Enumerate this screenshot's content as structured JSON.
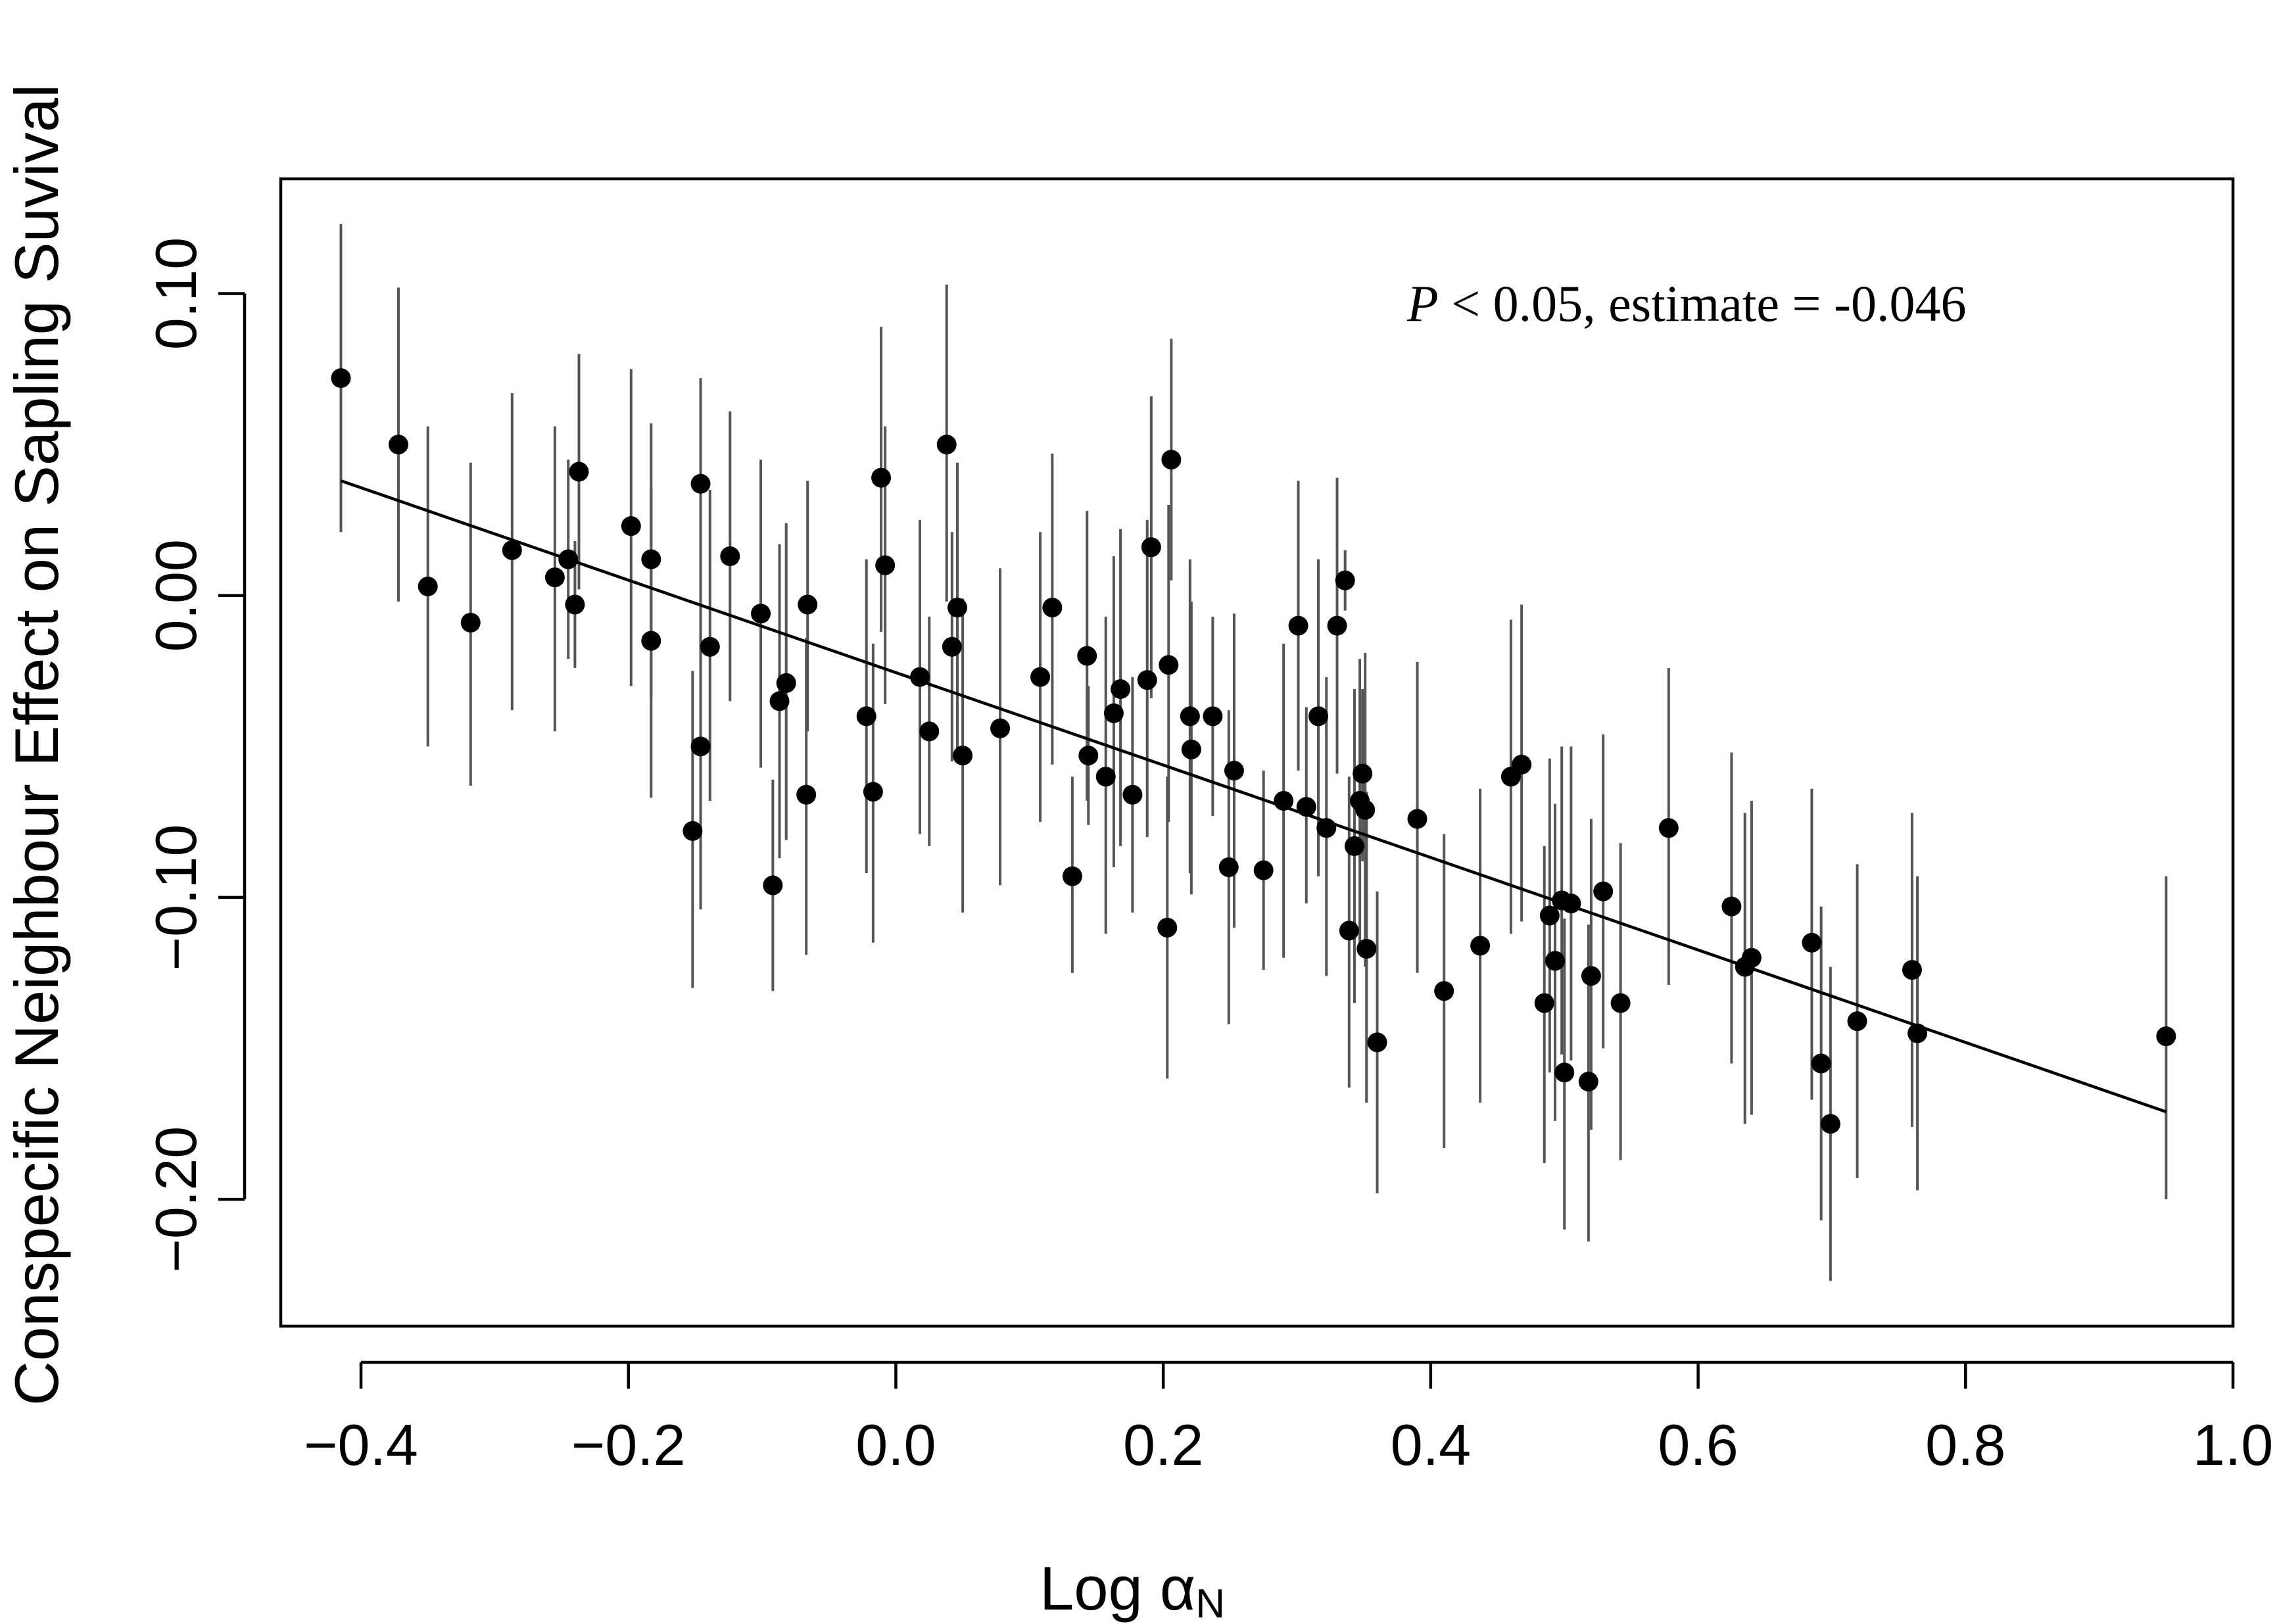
{
  "chart_data": {
    "type": "scatter",
    "xlabel": "Log α",
    "xlabel_subscript": "N",
    "ylabel": "Conspecific Neighbour Effect on Sapling Suvival",
    "xlim": [
      -0.46,
      1.0
    ],
    "ylim": [
      -0.242,
      0.138
    ],
    "x_ticks": [
      -0.4,
      -0.2,
      0.0,
      0.2,
      0.4,
      0.6,
      0.8,
      1.0
    ],
    "x_tick_labels": [
      "−0.4",
      "−0.2",
      "0.0",
      "0.2",
      "0.4",
      "0.6",
      "0.8",
      "1.0"
    ],
    "y_ticks": [
      -0.2,
      -0.1,
      0.0,
      0.1
    ],
    "y_tick_labels": [
      "−0.20",
      "−0.10",
      "0.00",
      "0.10"
    ],
    "grid": false,
    "legend": "none",
    "annotation": {
      "p_symbol": "P",
      "text": " < 0.05, estimate = -0.046",
      "position": "top-right"
    },
    "fit_line": {
      "x": [
        -0.415,
        0.95
      ],
      "y": [
        0.038,
        -0.171
      ]
    },
    "points": [
      {
        "x": -0.415,
        "y": 0.072,
        "lo": 0.021,
        "hi": 0.123
      },
      {
        "x": -0.372,
        "y": 0.05,
        "lo": -0.002,
        "hi": 0.102
      },
      {
        "x": -0.35,
        "y": 0.003,
        "lo": -0.05,
        "hi": 0.056
      },
      {
        "x": -0.318,
        "y": -0.009,
        "lo": -0.063,
        "hi": 0.044
      },
      {
        "x": -0.287,
        "y": 0.015,
        "lo": -0.038,
        "hi": 0.067
      },
      {
        "x": -0.255,
        "y": 0.006,
        "lo": -0.045,
        "hi": 0.056
      },
      {
        "x": -0.245,
        "y": 0.012,
        "lo": -0.021,
        "hi": 0.045
      },
      {
        "x": -0.24,
        "y": -0.003,
        "lo": -0.024,
        "hi": 0.018
      },
      {
        "x": -0.237,
        "y": 0.041,
        "lo": 0.002,
        "hi": 0.08
      },
      {
        "x": -0.198,
        "y": 0.023,
        "lo": -0.03,
        "hi": 0.075
      },
      {
        "x": -0.183,
        "y": 0.012,
        "lo": -0.034,
        "hi": 0.057
      },
      {
        "x": -0.183,
        "y": -0.015,
        "lo": -0.067,
        "hi": 0.036
      },
      {
        "x": -0.152,
        "y": -0.078,
        "lo": -0.13,
        "hi": -0.025
      },
      {
        "x": -0.146,
        "y": 0.037,
        "lo": 0.003,
        "hi": 0.072
      },
      {
        "x": -0.146,
        "y": -0.05,
        "lo": -0.104,
        "hi": 0.004
      },
      {
        "x": -0.139,
        "y": -0.017,
        "lo": -0.068,
        "hi": 0.035
      },
      {
        "x": -0.124,
        "y": 0.013,
        "lo": -0.035,
        "hi": 0.061
      },
      {
        "x": -0.101,
        "y": -0.006,
        "lo": -0.057,
        "hi": 0.045
      },
      {
        "x": -0.092,
        "y": -0.096,
        "lo": -0.131,
        "hi": -0.061
      },
      {
        "x": -0.087,
        "y": -0.035,
        "lo": -0.087,
        "hi": 0.017
      },
      {
        "x": -0.082,
        "y": -0.029,
        "lo": -0.081,
        "hi": 0.024
      },
      {
        "x": -0.067,
        "y": -0.066,
        "lo": -0.119,
        "hi": -0.014
      },
      {
        "x": -0.066,
        "y": -0.003,
        "lo": -0.045,
        "hi": 0.038
      },
      {
        "x": -0.022,
        "y": -0.04,
        "lo": -0.092,
        "hi": 0.012
      },
      {
        "x": -0.017,
        "y": -0.065,
        "lo": -0.115,
        "hi": -0.016
      },
      {
        "x": -0.011,
        "y": 0.039,
        "lo": -0.012,
        "hi": 0.089
      },
      {
        "x": -0.008,
        "y": 0.01,
        "lo": -0.036,
        "hi": 0.056
      },
      {
        "x": 0.018,
        "y": -0.027,
        "lo": -0.079,
        "hi": 0.025
      },
      {
        "x": 0.025,
        "y": -0.045,
        "lo": -0.083,
        "hi": -0.007
      },
      {
        "x": 0.038,
        "y": 0.05,
        "lo": -0.002,
        "hi": 0.103
      },
      {
        "x": 0.042,
        "y": -0.017,
        "lo": -0.055,
        "hi": 0.021
      },
      {
        "x": 0.046,
        "y": -0.004,
        "lo": -0.051,
        "hi": 0.044
      },
      {
        "x": 0.05,
        "y": -0.053,
        "lo": -0.105,
        "hi": -0.001
      },
      {
        "x": 0.078,
        "y": -0.044,
        "lo": -0.096,
        "hi": 0.009
      },
      {
        "x": 0.108,
        "y": -0.027,
        "lo": -0.075,
        "hi": 0.021
      },
      {
        "x": 0.117,
        "y": -0.004,
        "lo": -0.056,
        "hi": 0.047
      },
      {
        "x": 0.132,
        "y": -0.093,
        "lo": -0.125,
        "hi": -0.06
      },
      {
        "x": 0.143,
        "y": -0.02,
        "lo": -0.068,
        "hi": 0.028
      },
      {
        "x": 0.144,
        "y": -0.053,
        "lo": -0.076,
        "hi": -0.03
      },
      {
        "x": 0.157,
        "y": -0.06,
        "lo": -0.112,
        "hi": -0.007
      },
      {
        "x": 0.163,
        "y": -0.039,
        "lo": -0.09,
        "hi": 0.013
      },
      {
        "x": 0.168,
        "y": -0.031,
        "lo": -0.083,
        "hi": 0.022
      },
      {
        "x": 0.177,
        "y": -0.066,
        "lo": -0.105,
        "hi": -0.027
      },
      {
        "x": 0.188,
        "y": -0.028,
        "lo": -0.08,
        "hi": 0.025
      },
      {
        "x": 0.191,
        "y": 0.016,
        "lo": -0.034,
        "hi": 0.066
      },
      {
        "x": 0.203,
        "y": -0.11,
        "lo": -0.16,
        "hi": -0.06
      },
      {
        "x": 0.204,
        "y": -0.023,
        "lo": -0.075,
        "hi": 0.03
      },
      {
        "x": 0.206,
        "y": 0.045,
        "lo": 0.005,
        "hi": 0.085
      },
      {
        "x": 0.22,
        "y": -0.04,
        "lo": -0.092,
        "hi": 0.012
      },
      {
        "x": 0.221,
        "y": -0.051,
        "lo": -0.099,
        "hi": -0.002
      },
      {
        "x": 0.237,
        "y": -0.04,
        "lo": -0.073,
        "hi": -0.007
      },
      {
        "x": 0.249,
        "y": -0.09,
        "lo": -0.142,
        "hi": -0.038
      },
      {
        "x": 0.253,
        "y": -0.058,
        "lo": -0.11,
        "hi": -0.006
      },
      {
        "x": 0.275,
        "y": -0.091,
        "lo": -0.124,
        "hi": -0.058
      },
      {
        "x": 0.29,
        "y": -0.068,
        "lo": -0.12,
        "hi": -0.016
      },
      {
        "x": 0.301,
        "y": -0.01,
        "lo": -0.058,
        "hi": 0.038
      },
      {
        "x": 0.307,
        "y": -0.07,
        "lo": -0.102,
        "hi": -0.037
      },
      {
        "x": 0.316,
        "y": -0.04,
        "lo": -0.093,
        "hi": 0.012
      },
      {
        "x": 0.322,
        "y": -0.077,
        "lo": -0.126,
        "hi": -0.027
      },
      {
        "x": 0.33,
        "y": -0.01,
        "lo": -0.059,
        "hi": 0.039
      },
      {
        "x": 0.336,
        "y": 0.005,
        "lo": -0.005,
        "hi": 0.015
      },
      {
        "x": 0.339,
        "y": -0.111,
        "lo": -0.163,
        "hi": -0.06
      },
      {
        "x": 0.343,
        "y": -0.083,
        "lo": -0.135,
        "hi": -0.031
      },
      {
        "x": 0.347,
        "y": -0.068,
        "lo": -0.115,
        "hi": -0.021
      },
      {
        "x": 0.349,
        "y": -0.059,
        "lo": -0.088,
        "hi": -0.031
      },
      {
        "x": 0.351,
        "y": -0.071,
        "lo": -0.123,
        "hi": -0.019
      },
      {
        "x": 0.352,
        "y": -0.117,
        "lo": -0.168,
        "hi": -0.065
      },
      {
        "x": 0.36,
        "y": -0.148,
        "lo": -0.198,
        "hi": -0.098
      },
      {
        "x": 0.39,
        "y": -0.074,
        "lo": -0.125,
        "hi": -0.022
      },
      {
        "x": 0.41,
        "y": -0.131,
        "lo": -0.183,
        "hi": -0.079
      },
      {
        "x": 0.437,
        "y": -0.116,
        "lo": -0.168,
        "hi": -0.064
      },
      {
        "x": 0.46,
        "y": -0.06,
        "lo": -0.112,
        "hi": -0.008
      },
      {
        "x": 0.468,
        "y": -0.056,
        "lo": -0.108,
        "hi": -0.003
      },
      {
        "x": 0.485,
        "y": -0.135,
        "lo": -0.188,
        "hi": -0.083
      },
      {
        "x": 0.489,
        "y": -0.106,
        "lo": -0.158,
        "hi": -0.054
      },
      {
        "x": 0.493,
        "y": -0.121,
        "lo": -0.174,
        "hi": -0.069
      },
      {
        "x": 0.498,
        "y": -0.101,
        "lo": -0.152,
        "hi": -0.05
      },
      {
        "x": 0.5,
        "y": -0.158,
        "lo": -0.21,
        "hi": -0.107
      },
      {
        "x": 0.505,
        "y": -0.102,
        "lo": -0.154,
        "hi": -0.05
      },
      {
        "x": 0.518,
        "y": -0.161,
        "lo": -0.214,
        "hi": -0.109
      },
      {
        "x": 0.52,
        "y": -0.126,
        "lo": -0.177,
        "hi": -0.074
      },
      {
        "x": 0.529,
        "y": -0.098,
        "lo": -0.15,
        "hi": -0.046
      },
      {
        "x": 0.542,
        "y": -0.135,
        "lo": -0.187,
        "hi": -0.082
      },
      {
        "x": 0.578,
        "y": -0.077,
        "lo": -0.129,
        "hi": -0.024
      },
      {
        "x": 0.625,
        "y": -0.103,
        "lo": -0.155,
        "hi": -0.052
      },
      {
        "x": 0.635,
        "y": -0.123,
        "lo": -0.175,
        "hi": -0.072
      },
      {
        "x": 0.64,
        "y": -0.12,
        "lo": -0.172,
        "hi": -0.068
      },
      {
        "x": 0.685,
        "y": -0.115,
        "lo": -0.167,
        "hi": -0.064
      },
      {
        "x": 0.692,
        "y": -0.155,
        "lo": -0.207,
        "hi": -0.103
      },
      {
        "x": 0.699,
        "y": -0.175,
        "lo": -0.227,
        "hi": -0.123
      },
      {
        "x": 0.719,
        "y": -0.141,
        "lo": -0.193,
        "hi": -0.089
      },
      {
        "x": 0.76,
        "y": -0.124,
        "lo": -0.176,
        "hi": -0.072
      },
      {
        "x": 0.764,
        "y": -0.145,
        "lo": -0.197,
        "hi": -0.093
      },
      {
        "x": 0.95,
        "y": -0.146,
        "lo": -0.2,
        "hi": -0.093
      }
    ]
  }
}
